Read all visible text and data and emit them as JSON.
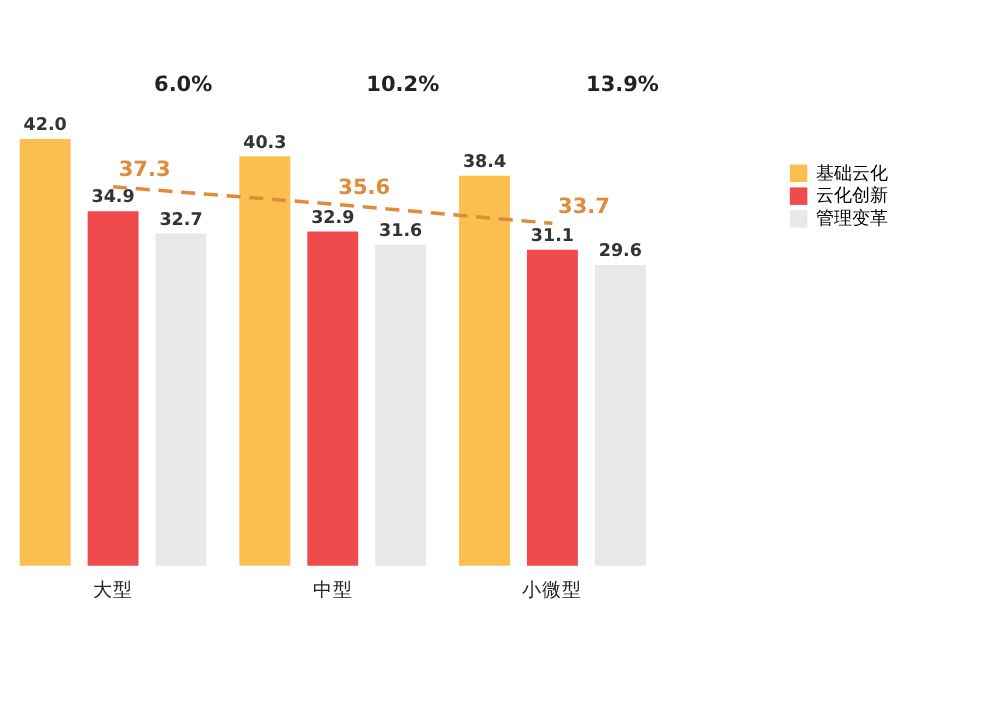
{
  "chart_data": {
    "type": "bar",
    "categories": [
      "大型",
      "中型",
      "小微型"
    ],
    "series": [
      {
        "name": "基础云化",
        "color": "#fbbf4f",
        "values": [
          42.0,
          40.3,
          38.4
        ],
        "value_labels": [
          "42.0",
          "40.3",
          "38.4"
        ]
      },
      {
        "name": "云化创新",
        "color": "#f04b4c",
        "values": [
          34.9,
          32.9,
          31.1
        ],
        "value_labels": [
          "34.9",
          "32.9",
          "31.1"
        ]
      },
      {
        "name": "管理变革",
        "color": "#e8e8e8",
        "values": [
          32.7,
          31.6,
          29.6
        ],
        "value_labels": [
          "32.7",
          "31.6",
          "29.6"
        ]
      },
      {
        "type": "line",
        "line_style": "dashed",
        "color": "#e08a3c",
        "values": [
          37.3,
          35.6,
          33.7
        ],
        "value_labels": [
          "37.3",
          "35.6",
          "33.7"
        ]
      }
    ],
    "legend": "right",
    "grid": false,
    "annotations": [
      "6.0%",
      "10.2%",
      "13.9%"
    ]
  }
}
